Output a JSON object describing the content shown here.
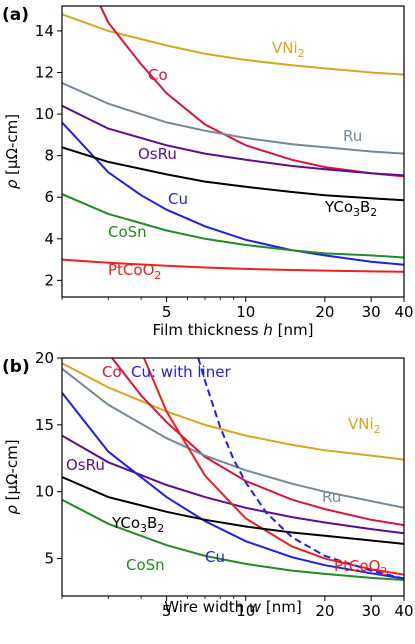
{
  "chart_data": [
    {
      "type": "line",
      "panel_label": "(a)",
      "xscale": "log",
      "xlim": [
        2,
        40
      ],
      "ylim": [
        1.2,
        15.2
      ],
      "xticks": [
        5,
        10,
        20,
        30,
        40
      ],
      "xtick_labels": [
        "5",
        "10",
        "20",
        "30",
        "40"
      ],
      "yticks": [
        2,
        4,
        6,
        8,
        10,
        12,
        14
      ],
      "ylabel": "ρ [μΩ-cm]",
      "xlabel": "Film thickness h [nm]",
      "series": [
        {
          "name": "VNi2",
          "label_main": "VNi",
          "label_sub": "2",
          "color": "#DAA520",
          "x": [
            2,
            3,
            5,
            7,
            10,
            15,
            20,
            30,
            40
          ],
          "y": [
            14.8,
            14.0,
            13.3,
            12.9,
            12.6,
            12.35,
            12.2,
            12.0,
            11.9
          ]
        },
        {
          "name": "Co",
          "label_main": "Co",
          "color": "#DC143C",
          "x": [
            2.8,
            3,
            4,
            5,
            7,
            10,
            15,
            20,
            30,
            40
          ],
          "y": [
            15.2,
            14.4,
            12.4,
            11.0,
            9.5,
            8.5,
            7.8,
            7.45,
            7.15,
            7.0
          ]
        },
        {
          "name": "Ru",
          "label_main": "Ru",
          "color": "#778899",
          "x": [
            2,
            3,
            5,
            7,
            10,
            15,
            20,
            30,
            40
          ],
          "y": [
            11.5,
            10.5,
            9.6,
            9.2,
            8.85,
            8.55,
            8.4,
            8.2,
            8.1
          ]
        },
        {
          "name": "OsRu",
          "label_main": "OsRu",
          "color": "#5B0E91",
          "x": [
            2,
            3,
            5,
            7,
            10,
            15,
            20,
            30,
            40
          ],
          "y": [
            10.4,
            9.3,
            8.5,
            8.1,
            7.8,
            7.5,
            7.35,
            7.15,
            7.05
          ]
        },
        {
          "name": "Cu",
          "label_main": "Cu",
          "color": "#1F1FE6",
          "x": [
            2,
            3,
            4,
            5,
            7,
            10,
            15,
            20,
            30,
            40
          ],
          "y": [
            9.6,
            7.2,
            6.1,
            5.4,
            4.6,
            3.95,
            3.45,
            3.2,
            2.9,
            2.75
          ]
        },
        {
          "name": "YCo3B2",
          "label_main": "YCo",
          "label_sub": "3",
          "label_main2": "B",
          "label_sub2": "2",
          "color": "#000000",
          "x": [
            2,
            3,
            5,
            7,
            10,
            15,
            20,
            30,
            40
          ],
          "y": [
            8.4,
            7.7,
            7.1,
            6.75,
            6.5,
            6.25,
            6.1,
            5.95,
            5.85
          ]
        },
        {
          "name": "CoSn",
          "label_main": "CoSn",
          "color": "#228B22",
          "x": [
            2,
            3,
            5,
            7,
            10,
            15,
            20,
            30,
            40
          ],
          "y": [
            6.15,
            5.2,
            4.4,
            4.0,
            3.7,
            3.45,
            3.3,
            3.2,
            3.1
          ]
        },
        {
          "name": "PtCoO2",
          "label_main": "PtCoO",
          "label_sub": "2",
          "color": "#F01E1E",
          "x": [
            2,
            3,
            5,
            7,
            10,
            15,
            20,
            30,
            40
          ],
          "y": [
            3.0,
            2.85,
            2.7,
            2.62,
            2.55,
            2.5,
            2.47,
            2.43,
            2.41
          ]
        }
      ]
    },
    {
      "type": "line",
      "panel_label": "(b)",
      "xscale": "log",
      "xlim": [
        2,
        40
      ],
      "ylim": [
        2.2,
        20
      ],
      "xticks": [
        5,
        10,
        20,
        30,
        40
      ],
      "xtick_labels": [
        "5",
        "10",
        "20",
        "30",
        "40"
      ],
      "yticks": [
        5,
        10,
        15,
        20
      ],
      "ylabel": "ρ [μΩ-cm]",
      "xlabel": "Wire width w [nm]",
      "series": [
        {
          "name": "VNi2",
          "label_main": "VNi",
          "label_sub": "2",
          "color": "#DAA520",
          "x": [
            2,
            3,
            5,
            7,
            10,
            15,
            20,
            30,
            40
          ],
          "y": [
            19.6,
            17.8,
            16.0,
            15.0,
            14.2,
            13.5,
            13.1,
            12.7,
            12.4
          ]
        },
        {
          "name": "Co",
          "label_main": "Co",
          "color": "#DC143C",
          "x": [
            3.1,
            4,
            5,
            7,
            10,
            15,
            20,
            30,
            40
          ],
          "y": [
            20,
            17.2,
            15.2,
            12.6,
            10.8,
            9.4,
            8.7,
            7.9,
            7.5
          ]
        },
        {
          "name": "Ru",
          "label_main": "Ru",
          "color": "#778899",
          "x": [
            2,
            3,
            5,
            7,
            10,
            15,
            20,
            30,
            40
          ],
          "y": [
            19.2,
            16.5,
            14.0,
            12.7,
            11.6,
            10.6,
            10.0,
            9.3,
            8.8
          ]
        },
        {
          "name": "OsRu",
          "label_main": "OsRu",
          "color": "#5B0E91",
          "x": [
            2,
            3,
            5,
            7,
            10,
            15,
            20,
            30,
            40
          ],
          "y": [
            14.2,
            12.2,
            10.5,
            9.6,
            8.8,
            8.1,
            7.7,
            7.2,
            6.9
          ]
        },
        {
          "name": "PtCoO2",
          "label_main": "PtCoO",
          "label_sub": "2",
          "color": "#F01E1E",
          "x": [
            4.1,
            5,
            7,
            10,
            15,
            20,
            30,
            40
          ],
          "y": [
            20,
            16.0,
            11.2,
            8.0,
            5.9,
            5.0,
            4.2,
            3.8
          ]
        },
        {
          "name": "Cu",
          "label_main": "Cu",
          "color": "#1F1FE6",
          "x": [
            2,
            3,
            5,
            7,
            10,
            15,
            20,
            30,
            40
          ],
          "y": [
            17.4,
            13.0,
            9.6,
            7.8,
            6.3,
            5.1,
            4.5,
            3.9,
            3.5
          ]
        },
        {
          "name": "YCo3B2",
          "label_main": "YCo",
          "label_sub": "3",
          "label_main2": "B",
          "label_sub2": "2",
          "color": "#000000",
          "x": [
            2,
            3,
            5,
            7,
            10,
            15,
            20,
            30,
            40
          ],
          "y": [
            11.1,
            9.6,
            8.5,
            7.9,
            7.4,
            6.95,
            6.7,
            6.35,
            6.1
          ]
        },
        {
          "name": "CoSn",
          "label_main": "CoSn",
          "color": "#228B22",
          "x": [
            2,
            3,
            5,
            7,
            10,
            15,
            20,
            30,
            40
          ],
          "y": [
            9.4,
            7.6,
            6.0,
            5.2,
            4.6,
            4.1,
            3.85,
            3.55,
            3.4
          ]
        },
        {
          "name": "Cu: with liner",
          "label_main": "Cu: with liner",
          "color": "#1F1FE6",
          "dashed": true,
          "x": [
            6.6,
            7,
            8,
            9,
            10,
            12,
            15,
            20,
            30,
            40
          ],
          "y": [
            20,
            18.3,
            14.8,
            12.4,
            10.7,
            8.4,
            6.6,
            5.2,
            4.1,
            3.5
          ]
        }
      ]
    }
  ]
}
